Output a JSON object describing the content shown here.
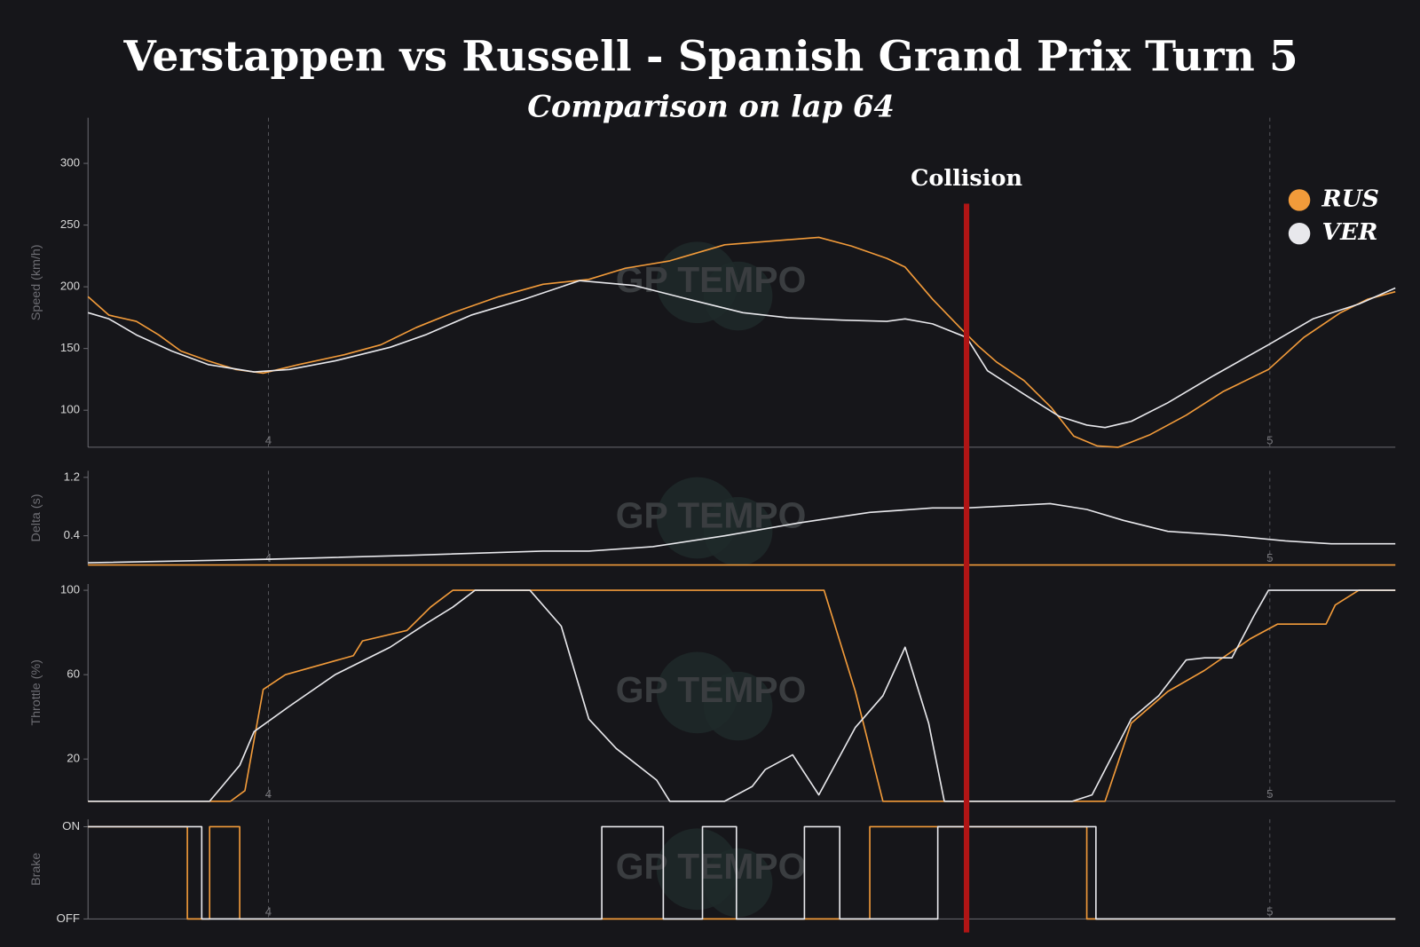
{
  "title": "Verstappen vs Russell - Spanish Grand Prix Turn 5",
  "subtitle": "Comparison on lap 64",
  "watermark": "GP TEMPO",
  "annotations": [
    {
      "text": "Collision",
      "x": 67.2,
      "color": "#b01515"
    }
  ],
  "chart_data": [
    {
      "type": "line",
      "ylabel": "Speed (km/h)",
      "xlim": [
        0,
        100
      ],
      "ylim": [
        70,
        337
      ],
      "yticks": [
        100,
        150,
        200,
        250,
        300
      ],
      "xticks": [
        {
          "value": 13.8,
          "label": "4"
        },
        {
          "value": 90.4,
          "label": "5"
        }
      ],
      "legend": "upper right",
      "series": [
        {
          "name": "RUS",
          "color": "#f29b3a",
          "x": [
            0,
            1.6,
            3.7,
            5.4,
            7.1,
            9.2,
            11.3,
            13.4,
            16.1,
            19.6,
            22.4,
            25.1,
            27.9,
            31.4,
            34.8,
            38.3,
            41.1,
            44.5,
            48.7,
            52.2,
            55.9,
            58.4,
            61.1,
            62.5,
            64.6,
            66.7,
            68.1,
            69.5,
            71.6,
            73.7,
            75.4,
            77.2,
            78.8,
            81.2,
            84.0,
            86.8,
            90.3,
            93.0,
            95.8,
            97.9,
            100
          ],
          "values": [
            192,
            177,
            172,
            161,
            148,
            140,
            133,
            130,
            137,
            145,
            153,
            167,
            179,
            192,
            202,
            206,
            215,
            221,
            234,
            237,
            240,
            233,
            223,
            216,
            190,
            167,
            152,
            139,
            124,
            102,
            79,
            71,
            70,
            80,
            96,
            115,
            133,
            159,
            179,
            190,
            196
          ]
        },
        {
          "name": "VER",
          "color": "#e8e8ec",
          "x": [
            0,
            1.6,
            3.7,
            6.4,
            9.2,
            12.7,
            15.4,
            18.9,
            23.1,
            25.8,
            29.3,
            33.4,
            37.6,
            41.8,
            45.9,
            50.1,
            53.5,
            57.7,
            61.1,
            62.5,
            64.6,
            67.2,
            68.8,
            71.6,
            74.3,
            76.4,
            77.8,
            79.8,
            82.6,
            86.1,
            90.3,
            93.7,
            97.2,
            100
          ],
          "values": [
            179,
            174,
            161,
            148,
            137,
            131,
            133,
            140,
            151,
            161,
            177,
            190,
            205,
            201,
            190,
            179,
            175,
            173,
            172,
            174,
            170,
            159,
            132,
            113,
            95,
            88,
            86,
            91,
            106,
            128,
            153,
            174,
            186,
            199
          ]
        }
      ]
    },
    {
      "type": "line",
      "ylabel": "Delta (s)",
      "xlim": [
        0,
        100
      ],
      "ylim": [
        0,
        1.29
      ],
      "yticks": [
        0.4,
        1.2
      ],
      "xticks": [
        {
          "value": 13.8,
          "label": "4"
        },
        {
          "value": 90.4,
          "label": "5"
        }
      ],
      "series": [
        {
          "name": "RUS",
          "color": "#f29b3a",
          "x": [
            0,
            100
          ],
          "values": [
            0,
            0
          ]
        },
        {
          "name": "VER",
          "color": "#e8e8ec",
          "x": [
            0,
            14.1,
            24.4,
            34.8,
            38.3,
            43.2,
            48.7,
            54.2,
            59.8,
            64.6,
            67.2,
            73.6,
            76.4,
            79.2,
            82.6,
            86.8,
            91.6,
            95.1,
            100
          ],
          "values": [
            0.03,
            0.08,
            0.13,
            0.19,
            0.19,
            0.25,
            0.4,
            0.57,
            0.72,
            0.78,
            0.78,
            0.84,
            0.76,
            0.61,
            0.46,
            0.41,
            0.33,
            0.29,
            0.29
          ]
        }
      ]
    },
    {
      "type": "line",
      "ylabel": "Throttle (%)",
      "xlim": [
        0,
        100
      ],
      "ylim": [
        0,
        103
      ],
      "yticks": [
        20,
        60,
        100
      ],
      "xticks": [
        {
          "value": 13.8,
          "label": "4"
        },
        {
          "value": 90.4,
          "label": "5"
        }
      ],
      "series": [
        {
          "name": "RUS",
          "color": "#f29b3a",
          "x": [
            0,
            10.9,
            12.0,
            13.4,
            15.1,
            20.3,
            21.0,
            24.4,
            26.2,
            27.9,
            56.3,
            58.7,
            60.8,
            77.8,
            79.8,
            82.6,
            85.4,
            88.9,
            91.0,
            94.7,
            95.4,
            97.2,
            100
          ],
          "values": [
            0,
            0,
            5,
            53,
            60,
            69,
            76,
            81,
            92,
            100,
            100,
            52,
            0,
            0,
            37,
            52,
            62,
            77,
            84,
            84,
            93,
            100,
            100
          ]
        },
        {
          "name": "VER",
          "color": "#e8e8ec",
          "x": [
            0,
            9.3,
            11.6,
            12.7,
            15.4,
            18.9,
            23.1,
            25.8,
            27.9,
            29.6,
            33.8,
            36.2,
            38.3,
            40.4,
            43.5,
            44.5,
            48.7,
            50.8,
            51.8,
            53.9,
            55.9,
            58.7,
            60.8,
            62.5,
            64.3,
            65.5,
            75.3,
            76.8,
            79.8,
            81.9,
            84.0,
            85.4,
            87.5,
            89.2,
            90.3,
            100
          ],
          "values": [
            0,
            0,
            17,
            33,
            45,
            60,
            73,
            84,
            92,
            100,
            100,
            83,
            39,
            25,
            10,
            0,
            0,
            7,
            15,
            22,
            3,
            35,
            50,
            73,
            37,
            0,
            0,
            3,
            39,
            50,
            67,
            68,
            68,
            88,
            100,
            100
          ]
        }
      ]
    },
    {
      "type": "line",
      "ylabel": "Brake",
      "xlim": [
        0,
        100
      ],
      "ylim": [
        0,
        1.08
      ],
      "yticks": [
        {
          "value": 0,
          "label": "OFF"
        },
        {
          "value": 1,
          "label": "ON"
        }
      ],
      "xticks": [
        {
          "value": 13.8,
          "label": "4"
        },
        {
          "value": 90.4,
          "label": "5"
        }
      ],
      "series": [
        {
          "name": "RUS",
          "color": "#f29b3a",
          "x": [
            0,
            7.6,
            7.6,
            9.3,
            9.3,
            11.6,
            11.6,
            59.8,
            59.8,
            76.4,
            76.4,
            100
          ],
          "values": [
            1,
            1,
            0,
            0,
            1,
            1,
            0,
            0,
            1,
            1,
            0,
            0
          ]
        },
        {
          "name": "VER",
          "color": "#e8e8ec",
          "x": [
            0,
            8.7,
            8.7,
            39.3,
            39.3,
            44.0,
            44.0,
            47.0,
            47.0,
            49.6,
            49.6,
            54.8,
            54.8,
            57.5,
            57.5,
            65.0,
            65.0,
            77.1,
            77.1,
            100
          ],
          "values": [
            1,
            1,
            0,
            0,
            1,
            1,
            0,
            0,
            1,
            1,
            0,
            0,
            1,
            1,
            0,
            0,
            1,
            1,
            0,
            0
          ]
        }
      ]
    }
  ]
}
